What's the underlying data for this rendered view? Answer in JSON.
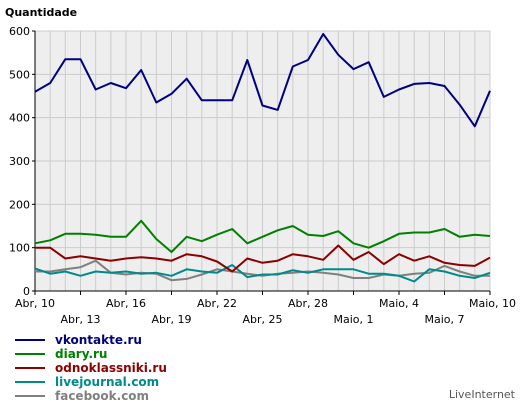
{
  "chart_data": {
    "type": "line",
    "title": "",
    "ylabel": "Quantidade",
    "xlabel": "",
    "ylim": [
      0,
      600
    ],
    "yticks": [
      0,
      100,
      200,
      300,
      400,
      500,
      600
    ],
    "grid": true,
    "legend_placement": "bottom-left",
    "background_color": "#eeeeee",
    "grid_color": "#cccccc",
    "x_tick_labels": [
      {
        "index": 0,
        "label": "Abr, 10",
        "row": 1
      },
      {
        "index": 3,
        "label": "Abr, 13",
        "row": 2
      },
      {
        "index": 6,
        "label": "Abr, 16",
        "row": 1
      },
      {
        "index": 9,
        "label": "Abr, 19",
        "row": 2
      },
      {
        "index": 12,
        "label": "Abr, 22",
        "row": 1
      },
      {
        "index": 15,
        "label": "Abr, 25",
        "row": 2
      },
      {
        "index": 18,
        "label": "Abr, 28",
        "row": 1
      },
      {
        "index": 21,
        "label": "Maio, 1",
        "row": 2
      },
      {
        "index": 24,
        "label": "Maio, 4",
        "row": 1
      },
      {
        "index": 27,
        "label": "Maio, 7",
        "row": 2
      },
      {
        "index": 30,
        "label": "Maio, 10",
        "row": 1
      }
    ],
    "series": [
      {
        "name": "vkontakte.ru",
        "color": "#000080",
        "values": [
          460,
          480,
          535,
          535,
          465,
          480,
          468,
          510,
          435,
          455,
          490,
          440,
          440,
          440,
          533,
          428,
          418,
          518,
          533,
          593,
          545,
          512,
          528,
          448,
          465,
          478,
          480,
          473,
          430,
          380,
          462
        ]
      },
      {
        "name": "diary.ru",
        "color": "#008000",
        "values": [
          110,
          117,
          132,
          132,
          130,
          125,
          125,
          162,
          120,
          90,
          125,
          115,
          130,
          143,
          110,
          125,
          140,
          150,
          130,
          127,
          138,
          110,
          100,
          115,
          132,
          135,
          135,
          143,
          125,
          130,
          127
        ]
      },
      {
        "name": "odnoklassniki.ru",
        "color": "#8b0000",
        "values": [
          100,
          100,
          75,
          80,
          75,
          70,
          75,
          78,
          75,
          70,
          85,
          80,
          68,
          45,
          75,
          65,
          70,
          85,
          80,
          72,
          105,
          72,
          90,
          62,
          85,
          70,
          80,
          65,
          60,
          58,
          77
        ]
      },
      {
        "name": "livejournal.com",
        "color": "#008b8b",
        "values": [
          52,
          40,
          45,
          35,
          45,
          42,
          45,
          40,
          42,
          35,
          50,
          45,
          42,
          60,
          32,
          38,
          38,
          48,
          42,
          50,
          50,
          50,
          40,
          40,
          35,
          22,
          50,
          45,
          35,
          30,
          42
        ]
      },
      {
        "name": "facebook.com",
        "color": "#808080",
        "values": [
          45,
          45,
          50,
          55,
          70,
          42,
          38,
          42,
          40,
          25,
          28,
          38,
          50,
          45,
          40,
          35,
          40,
          42,
          45,
          42,
          38,
          30,
          30,
          38,
          35,
          40,
          42,
          58,
          45,
          35,
          35
        ]
      }
    ]
  },
  "footer": {
    "brand": "LiveInternet"
  }
}
